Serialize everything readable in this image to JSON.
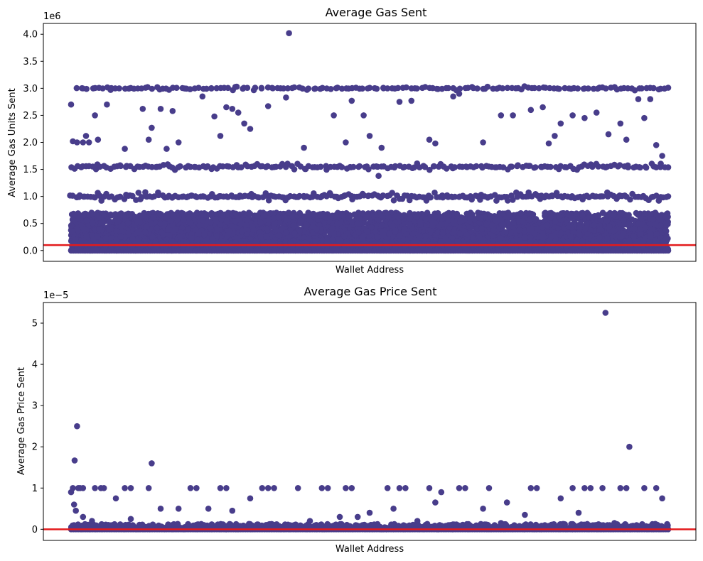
{
  "chart_data": [
    {
      "type": "scatter",
      "title": "Average Gas Sent",
      "xlabel": "Wallet Address",
      "ylabel": "Average Gas Units Sent",
      "offset_text": "1e6",
      "ylim": [
        -0.2,
        4.2
      ],
      "yticks": [
        0.0,
        0.5,
        1.0,
        1.5,
        2.0,
        2.5,
        3.0,
        3.5,
        4.0
      ],
      "ytick_labels": [
        "0.0",
        "0.5",
        "1.0",
        "1.5",
        "2.0",
        "2.5",
        "3.0",
        "3.5",
        "4.0"
      ],
      "reference_line": {
        "y": 0.1,
        "color": "#e31a1c"
      },
      "point_color": "#483d8b",
      "series": [
        {
          "points": [
            [
              0.0,
              2.7
            ],
            [
              0.003,
              2.02
            ],
            [
              0.01,
              2.0
            ],
            [
              0.02,
              2.0
            ],
            [
              0.025,
              2.12
            ],
            [
              0.03,
              2.0
            ],
            [
              0.04,
              2.5
            ],
            [
              0.045,
              2.05
            ],
            [
              0.06,
              2.7
            ],
            [
              0.09,
              1.88
            ],
            [
              0.12,
              2.62
            ],
            [
              0.13,
              2.05
            ],
            [
              0.135,
              2.27
            ],
            [
              0.15,
              2.62
            ],
            [
              0.16,
              1.88
            ],
            [
              0.17,
              2.58
            ],
            [
              0.18,
              2.0
            ],
            [
              0.22,
              2.85
            ],
            [
              0.24,
              2.48
            ],
            [
              0.25,
              2.12
            ],
            [
              0.26,
              2.65
            ],
            [
              0.27,
              2.62
            ],
            [
              0.28,
              2.55
            ],
            [
              0.29,
              2.35
            ],
            [
              0.3,
              2.25
            ],
            [
              0.33,
              2.67
            ],
            [
              0.36,
              2.83
            ],
            [
              0.39,
              1.9
            ],
            [
              0.44,
              2.5
            ],
            [
              0.46,
              2.0
            ],
            [
              0.47,
              2.77
            ],
            [
              0.49,
              2.5
            ],
            [
              0.5,
              2.12
            ],
            [
              0.52,
              1.9
            ],
            [
              0.55,
              2.75
            ],
            [
              0.57,
              2.77
            ],
            [
              0.6,
              2.05
            ],
            [
              0.61,
              1.98
            ],
            [
              0.64,
              2.85
            ],
            [
              0.65,
              2.9
            ],
            [
              0.69,
              2.0
            ],
            [
              0.72,
              2.5
            ],
            [
              0.74,
              2.5
            ],
            [
              0.77,
              2.6
            ],
            [
              0.79,
              2.65
            ],
            [
              0.8,
              1.98
            ],
            [
              0.81,
              2.12
            ],
            [
              0.82,
              2.35
            ],
            [
              0.84,
              2.5
            ],
            [
              0.86,
              2.45
            ],
            [
              0.88,
              2.55
            ],
            [
              0.9,
              2.15
            ],
            [
              0.92,
              2.35
            ],
            [
              0.93,
              2.05
            ],
            [
              0.95,
              2.8
            ],
            [
              0.96,
              2.45
            ],
            [
              0.97,
              2.8
            ],
            [
              0.98,
              1.95
            ],
            [
              0.99,
              1.75
            ],
            [
              0.365,
              4.02
            ],
            [
              0.515,
              1.38
            ]
          ]
        }
      ],
      "bands": [
        {
          "y": 3.0,
          "from": 0.01,
          "to": 1.0,
          "step": 0.006,
          "jitter": 0.04
        },
        {
          "y": 1.55,
          "from": 0.0,
          "to": 1.0,
          "step": 0.005,
          "jitter": 0.06
        },
        {
          "y": 1.0,
          "from": 0.0,
          "to": 1.0,
          "step": 0.004,
          "jitter": 0.08
        }
      ],
      "dense_band": {
        "ymin": 0.0,
        "ymax": 0.7,
        "from": 0.0,
        "to": 1.0
      }
    },
    {
      "type": "scatter",
      "title": "Average Gas Price Sent",
      "xlabel": "Wallet Address",
      "ylabel": "Average Gas Price Sent",
      "offset_text": "1e−5",
      "ylim": [
        -0.27,
        5.5
      ],
      "yticks": [
        0,
        1,
        2,
        3,
        4,
        5
      ],
      "ytick_labels": [
        "0",
        "1",
        "2",
        "3",
        "4",
        "5"
      ],
      "reference_line": {
        "y": 0.0,
        "color": "#e31a1c"
      },
      "point_color": "#483d8b",
      "series": [
        {
          "points": [
            [
              0.0,
              0.9
            ],
            [
              0.003,
              1.0
            ],
            [
              0.006,
              1.67
            ],
            [
              0.01,
              2.5
            ],
            [
              0.012,
              1.0
            ],
            [
              0.015,
              1.0
            ],
            [
              0.02,
              1.0
            ],
            [
              0.04,
              1.0
            ],
            [
              0.05,
              1.0
            ],
            [
              0.055,
              1.0
            ],
            [
              0.075,
              0.75
            ],
            [
              0.09,
              1.0
            ],
            [
              0.1,
              1.0
            ],
            [
              0.13,
              1.0
            ],
            [
              0.135,
              1.6
            ],
            [
              0.15,
              0.5
            ],
            [
              0.18,
              0.5
            ],
            [
              0.2,
              1.0
            ],
            [
              0.21,
              1.0
            ],
            [
              0.23,
              0.5
            ],
            [
              0.25,
              1.0
            ],
            [
              0.26,
              1.0
            ],
            [
              0.27,
              0.45
            ],
            [
              0.3,
              0.75
            ],
            [
              0.32,
              1.0
            ],
            [
              0.33,
              1.0
            ],
            [
              0.34,
              1.0
            ],
            [
              0.38,
              1.0
            ],
            [
              0.42,
              1.0
            ],
            [
              0.43,
              1.0
            ],
            [
              0.45,
              0.3
            ],
            [
              0.46,
              1.0
            ],
            [
              0.47,
              1.0
            ],
            [
              0.48,
              0.3
            ],
            [
              0.5,
              0.4
            ],
            [
              0.53,
              1.0
            ],
            [
              0.54,
              0.5
            ],
            [
              0.55,
              1.0
            ],
            [
              0.56,
              1.0
            ],
            [
              0.6,
              1.0
            ],
            [
              0.61,
              0.65
            ],
            [
              0.62,
              0.9
            ],
            [
              0.65,
              1.0
            ],
            [
              0.66,
              1.0
            ],
            [
              0.69,
              0.5
            ],
            [
              0.7,
              1.0
            ],
            [
              0.73,
              0.65
            ],
            [
              0.76,
              0.35
            ],
            [
              0.77,
              1.0
            ],
            [
              0.78,
              1.0
            ],
            [
              0.82,
              0.75
            ],
            [
              0.84,
              1.0
            ],
            [
              0.85,
              0.4
            ],
            [
              0.86,
              1.0
            ],
            [
              0.87,
              1.0
            ],
            [
              0.89,
              1.0
            ],
            [
              0.895,
              5.25
            ],
            [
              0.92,
              1.0
            ],
            [
              0.93,
              1.0
            ],
            [
              0.935,
              2.0
            ],
            [
              0.96,
              1.0
            ],
            [
              0.98,
              1.0
            ],
            [
              0.99,
              0.75
            ],
            [
              0.005,
              0.6
            ],
            [
              0.008,
              0.45
            ],
            [
              0.02,
              0.3
            ],
            [
              0.035,
              0.2
            ],
            [
              0.1,
              0.25
            ],
            [
              0.4,
              0.2
            ],
            [
              0.58,
              0.2
            ],
            [
              0.72,
              0.15
            ],
            [
              0.91,
              0.15
            ]
          ]
        }
      ],
      "dense_band": {
        "ymin": 0.0,
        "ymax": 0.13,
        "from": 0.0,
        "to": 1.0
      }
    }
  ]
}
